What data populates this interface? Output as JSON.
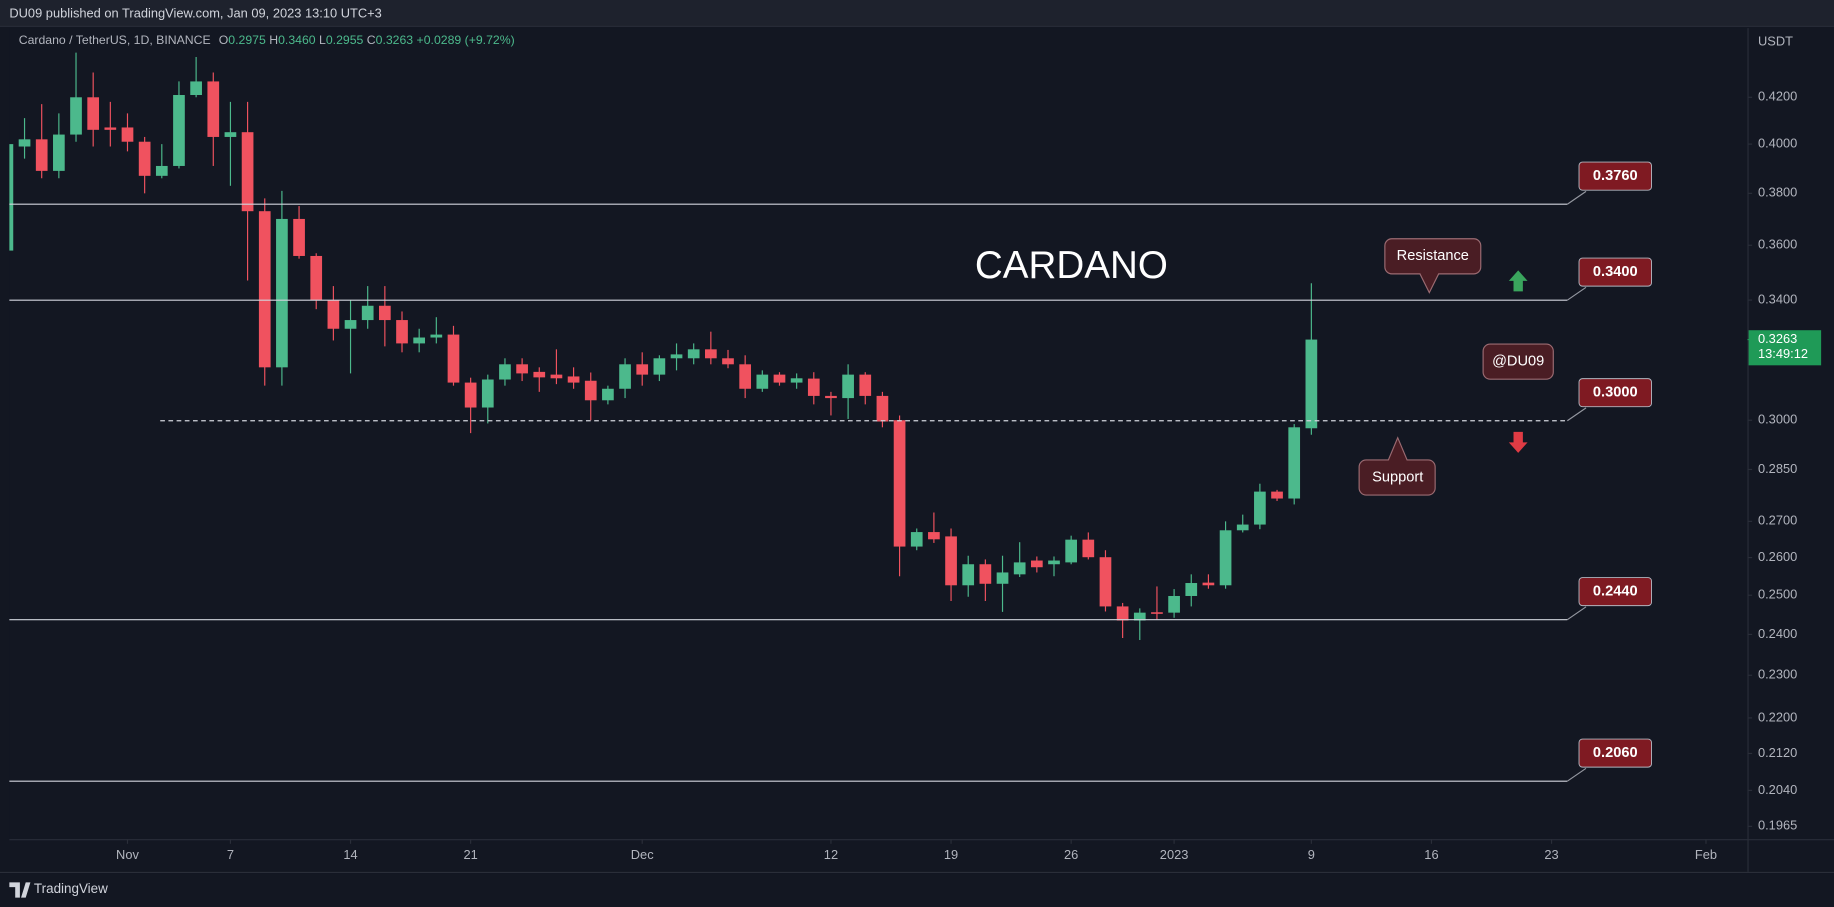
{
  "header": "DU09 published on TradingView.com, Jan 09, 2023 13:10 UTC+3",
  "footer_brand": "TradingView",
  "chart_data": {
    "type": "candlestick",
    "title": "Cardano / TetherUS, 1D, BINANCE",
    "legend_values": [
      {
        "key": "O",
        "value": "0.2975"
      },
      {
        "key": "H",
        "value": "0.3460"
      },
      {
        "key": "L",
        "value": "0.2955"
      },
      {
        "key": "C",
        "value": "0.3263"
      }
    ],
    "change": "+0.0289 (+9.72%)",
    "y_unit": "USDT",
    "log_y": true,
    "up_color": "#4cb98c",
    "down_color": "#f0525f",
    "x": [
      "2022-10-25",
      "2022-10-26",
      "2022-10-27",
      "2022-10-28",
      "2022-10-29",
      "2022-10-30",
      "2022-10-31",
      "2022-11-01",
      "2022-11-02",
      "2022-11-03",
      "2022-11-04",
      "2022-11-05",
      "2022-11-06",
      "2022-11-07",
      "2022-11-08",
      "2022-11-09",
      "2022-11-10",
      "2022-11-11",
      "2022-11-12",
      "2022-11-13",
      "2022-11-14",
      "2022-11-15",
      "2022-11-16",
      "2022-11-17",
      "2022-11-18",
      "2022-11-19",
      "2022-11-20",
      "2022-11-21",
      "2022-11-22",
      "2022-11-23",
      "2022-11-24",
      "2022-11-25",
      "2022-11-26",
      "2022-11-27",
      "2022-11-28",
      "2022-11-29",
      "2022-11-30",
      "2022-12-01",
      "2022-12-02",
      "2022-12-03",
      "2022-12-04",
      "2022-12-05",
      "2022-12-06",
      "2022-12-07",
      "2022-12-08",
      "2022-12-09",
      "2022-12-10",
      "2022-12-11",
      "2022-12-12",
      "2022-12-13",
      "2022-12-14",
      "2022-12-15",
      "2022-12-16",
      "2022-12-17",
      "2022-12-18",
      "2022-12-19",
      "2022-12-20",
      "2022-12-21",
      "2022-12-22",
      "2022-12-23",
      "2022-12-24",
      "2022-12-25",
      "2022-12-26",
      "2022-12-27",
      "2022-12-28",
      "2022-12-29",
      "2022-12-30",
      "2022-12-31",
      "2023-01-01",
      "2023-01-02",
      "2023-01-03",
      "2023-01-04",
      "2023-01-05",
      "2023-01-06",
      "2023-01-07",
      "2023-01-08",
      "2023-01-09"
    ],
    "open": [
      0.358,
      0.399,
      0.402,
      0.389,
      0.404,
      0.42,
      0.407,
      0.407,
      0.401,
      0.387,
      0.391,
      0.421,
      0.427,
      0.403,
      0.405,
      0.373,
      0.317,
      0.37,
      0.356,
      0.34,
      0.33,
      0.333,
      0.338,
      0.333,
      0.325,
      0.327,
      0.328,
      0.312,
      0.304,
      0.313,
      0.318,
      0.3155,
      0.3146,
      0.314,
      0.3126,
      0.3063,
      0.31,
      0.318,
      0.3146,
      0.32,
      0.32,
      0.323,
      0.32,
      0.318,
      0.31,
      0.3146,
      0.312,
      0.3133,
      0.3077,
      0.307,
      0.3146,
      0.3077,
      0.3,
      0.263,
      0.267,
      0.2658,
      0.2526,
      0.2582,
      0.253,
      0.2555,
      0.2592,
      0.2582,
      0.2587,
      0.2649,
      0.2601,
      0.2471,
      0.2435,
      0.2456,
      0.2455,
      0.2498,
      0.2533,
      0.2526,
      0.2675,
      0.2691,
      0.2785,
      0.2765,
      0.2975
    ],
    "high": [
      0.402,
      0.411,
      0.417,
      0.413,
      0.44,
      0.431,
      0.418,
      0.413,
      0.403,
      0.4,
      0.427,
      0.438,
      0.431,
      0.418,
      0.418,
      0.378,
      0.381,
      0.375,
      0.357,
      0.345,
      0.34,
      0.345,
      0.345,
      0.336,
      0.33,
      0.334,
      0.331,
      0.3136,
      0.3146,
      0.32,
      0.32,
      0.317,
      0.323,
      0.317,
      0.3153,
      0.311,
      0.32,
      0.322,
      0.321,
      0.325,
      0.325,
      0.329,
      0.3228,
      0.321,
      0.316,
      0.3154,
      0.315,
      0.3154,
      0.309,
      0.318,
      0.3154,
      0.309,
      0.3015,
      0.268,
      0.2725,
      0.268,
      0.2605,
      0.2595,
      0.2605,
      0.2642,
      0.2603,
      0.2603,
      0.266,
      0.2669,
      0.262,
      0.248,
      0.2466,
      0.2523,
      0.2516,
      0.2555,
      0.2555,
      0.27,
      0.2719,
      0.2808,
      0.279,
      0.2988,
      0.346
    ],
    "low": [
      0.355,
      0.394,
      0.386,
      0.386,
      0.401,
      0.399,
      0.399,
      0.397,
      0.38,
      0.386,
      0.39,
      0.42,
      0.391,
      0.383,
      0.347,
      0.311,
      0.311,
      0.355,
      0.3368,
      0.326,
      0.315,
      0.33,
      0.324,
      0.322,
      0.322,
      0.325,
      0.311,
      0.296,
      0.299,
      0.311,
      0.3125,
      0.309,
      0.3115,
      0.31,
      0.3,
      0.305,
      0.307,
      0.311,
      0.3125,
      0.316,
      0.318,
      0.318,
      0.3167,
      0.307,
      0.309,
      0.311,
      0.31,
      0.305,
      0.3015,
      0.3004,
      0.305,
      0.2978,
      0.255,
      0.262,
      0.264,
      0.2485,
      0.2496,
      0.2485,
      0.2457,
      0.2548,
      0.256,
      0.255,
      0.2582,
      0.2595,
      0.2458,
      0.2391,
      0.2386,
      0.2438,
      0.2442,
      0.2471,
      0.2517,
      0.2517,
      0.2669,
      0.2678,
      0.2758,
      0.2748,
      0.2955
    ],
    "close": [
      0.4,
      0.402,
      0.389,
      0.404,
      0.42,
      0.406,
      0.406,
      0.401,
      0.387,
      0.391,
      0.421,
      0.427,
      0.403,
      0.405,
      0.373,
      0.317,
      0.37,
      0.356,
      0.34,
      0.33,
      0.333,
      0.338,
      0.333,
      0.325,
      0.327,
      0.328,
      0.312,
      0.304,
      0.313,
      0.318,
      0.315,
      0.3137,
      0.3134,
      0.312,
      0.3063,
      0.31,
      0.318,
      0.3146,
      0.32,
      0.3213,
      0.323,
      0.32,
      0.318,
      0.31,
      0.3146,
      0.312,
      0.3134,
      0.3077,
      0.307,
      0.3146,
      0.3077,
      0.2996,
      0.263,
      0.267,
      0.265,
      0.2526,
      0.2582,
      0.253,
      0.256,
      0.2587,
      0.2574,
      0.2592,
      0.2649,
      0.2601,
      0.2471,
      0.2435,
      0.2455,
      0.2452,
      0.2498,
      0.2532,
      0.2526,
      0.2675,
      0.2691,
      0.2785,
      0.2765,
      0.2978,
      0.3263
    ],
    "xlim": [
      "2022-10-24T13:40Z",
      "2023-02-03T10:00Z"
    ],
    "xticks": [
      {
        "value": "2022-11-01",
        "label": "Nov"
      },
      {
        "value": "2022-11-07",
        "label": "7"
      },
      {
        "value": "2022-11-14",
        "label": "14"
      },
      {
        "value": "2022-11-21",
        "label": "21"
      },
      {
        "value": "2022-12-01",
        "label": "Dec"
      },
      {
        "value": "2022-12-12",
        "label": "12"
      },
      {
        "value": "2022-12-19",
        "label": "19"
      },
      {
        "value": "2022-12-26",
        "label": "26"
      },
      {
        "value": "2023-01-01",
        "label": "2023"
      },
      {
        "value": "2023-01-09",
        "label": "9"
      },
      {
        "value": "2023-01-16",
        "label": "16"
      },
      {
        "value": "2023-01-23",
        "label": "23"
      },
      {
        "value": "2023-02-01",
        "label": "Feb"
      }
    ],
    "ylim": [
      0.1939,
      0.4514
    ],
    "yticks": [
      {
        "value": 0.42,
        "label": "0.4200"
      },
      {
        "value": 0.4,
        "label": "0.4000"
      },
      {
        "value": 0.38,
        "label": "0.3800"
      },
      {
        "value": 0.36,
        "label": "0.3600"
      },
      {
        "value": 0.34,
        "label": "0.3400"
      },
      {
        "value": 0.3,
        "label": "0.3000"
      },
      {
        "value": 0.285,
        "label": "0.2850"
      },
      {
        "value": 0.27,
        "label": "0.2700"
      },
      {
        "value": 0.26,
        "label": "0.2600"
      },
      {
        "value": 0.25,
        "label": "0.2500"
      },
      {
        "value": 0.24,
        "label": "0.2400"
      },
      {
        "value": 0.23,
        "label": "0.2300"
      },
      {
        "value": 0.22,
        "label": "0.2200"
      },
      {
        "value": 0.212,
        "label": "0.2120"
      },
      {
        "value": 0.204,
        "label": "0.2040"
      },
      {
        "value": 0.1965,
        "label": "0.1965"
      }
    ],
    "levels": [
      {
        "value": 0.376,
        "label": "0.3760",
        "style": "solid"
      },
      {
        "value": 0.34,
        "label": "0.3400",
        "style": "solid"
      },
      {
        "value": 0.3,
        "label": "0.3000",
        "style": "dashed"
      },
      {
        "value": 0.244,
        "label": "0.2440",
        "style": "solid"
      },
      {
        "value": 0.206,
        "label": "0.2060",
        "style": "solid"
      }
    ],
    "last_price": {
      "value": 0.3263,
      "label": "0.3263",
      "countdown": "13:49:12",
      "color": "#1f9a57"
    },
    "annotations": {
      "name": "CARDANO",
      "resistance": "Resistance",
      "support": "Support",
      "watermark": "@DU09"
    }
  }
}
